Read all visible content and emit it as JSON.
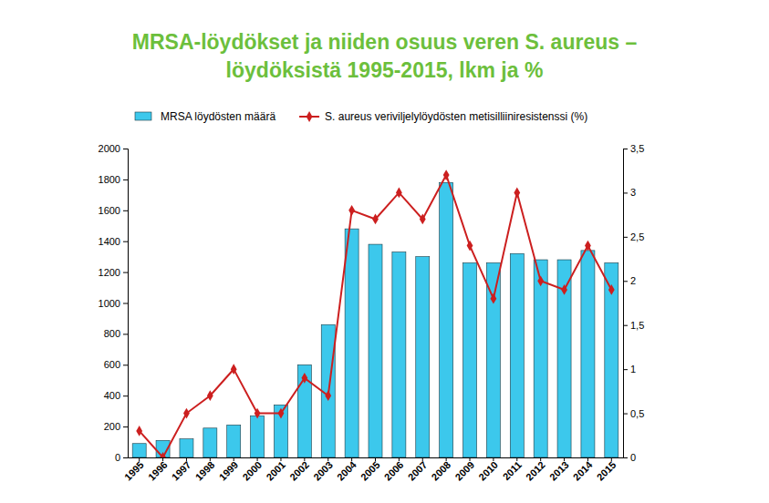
{
  "chart_data": {
    "type": "bar",
    "title": "MRSA-löydökset ja niiden osuus veren S. aureus –\nlöydöksistä 1995-2015, lkm ja %",
    "categories": [
      "1995",
      "1996",
      "1997",
      "1998",
      "1999",
      "2000",
      "2001",
      "2002",
      "2003",
      "2004",
      "2005",
      "2006",
      "2007",
      "2008",
      "2009",
      "2010",
      "2011",
      "2012",
      "2013",
      "2014",
      "2015"
    ],
    "series": [
      {
        "name": "MRSA löydösten määrä",
        "type": "bar",
        "color": "#3cc8ec",
        "values": [
          90,
          110,
          120,
          190,
          210,
          270,
          340,
          600,
          860,
          1480,
          1380,
          1330,
          1300,
          1780,
          1260,
          1260,
          1320,
          1280,
          1280,
          1340,
          1260
        ]
      },
      {
        "name": "S. aureus veriviljelylöydösten metisilliiniresistenssi (%)",
        "type": "line",
        "color": "#cc1f1f",
        "marker": "diamond",
        "axis": "y2",
        "values": [
          0.3,
          0.0,
          0.5,
          0.7,
          1.0,
          0.5,
          0.5,
          0.9,
          0.7,
          2.8,
          2.7,
          3.0,
          2.7,
          3.2,
          2.4,
          1.8,
          3.0,
          2.0,
          1.9,
          2.4,
          1.9
        ]
      }
    ],
    "ylim": [
      0,
      2000
    ],
    "yticks": [
      0,
      200,
      400,
      600,
      800,
      1000,
      1200,
      1400,
      1600,
      1800,
      2000
    ],
    "y2lim": [
      0,
      3.5
    ],
    "y2ticks": [
      0,
      {
        "value": 0.5,
        "label": "0,5"
      },
      1,
      {
        "value": 1.5,
        "label": "1,5"
      },
      2,
      {
        "value": 2.5,
        "label": "2,5"
      },
      3,
      {
        "value": 3.5,
        "label": "3,5"
      }
    ],
    "legend": "top",
    "grid": false
  }
}
